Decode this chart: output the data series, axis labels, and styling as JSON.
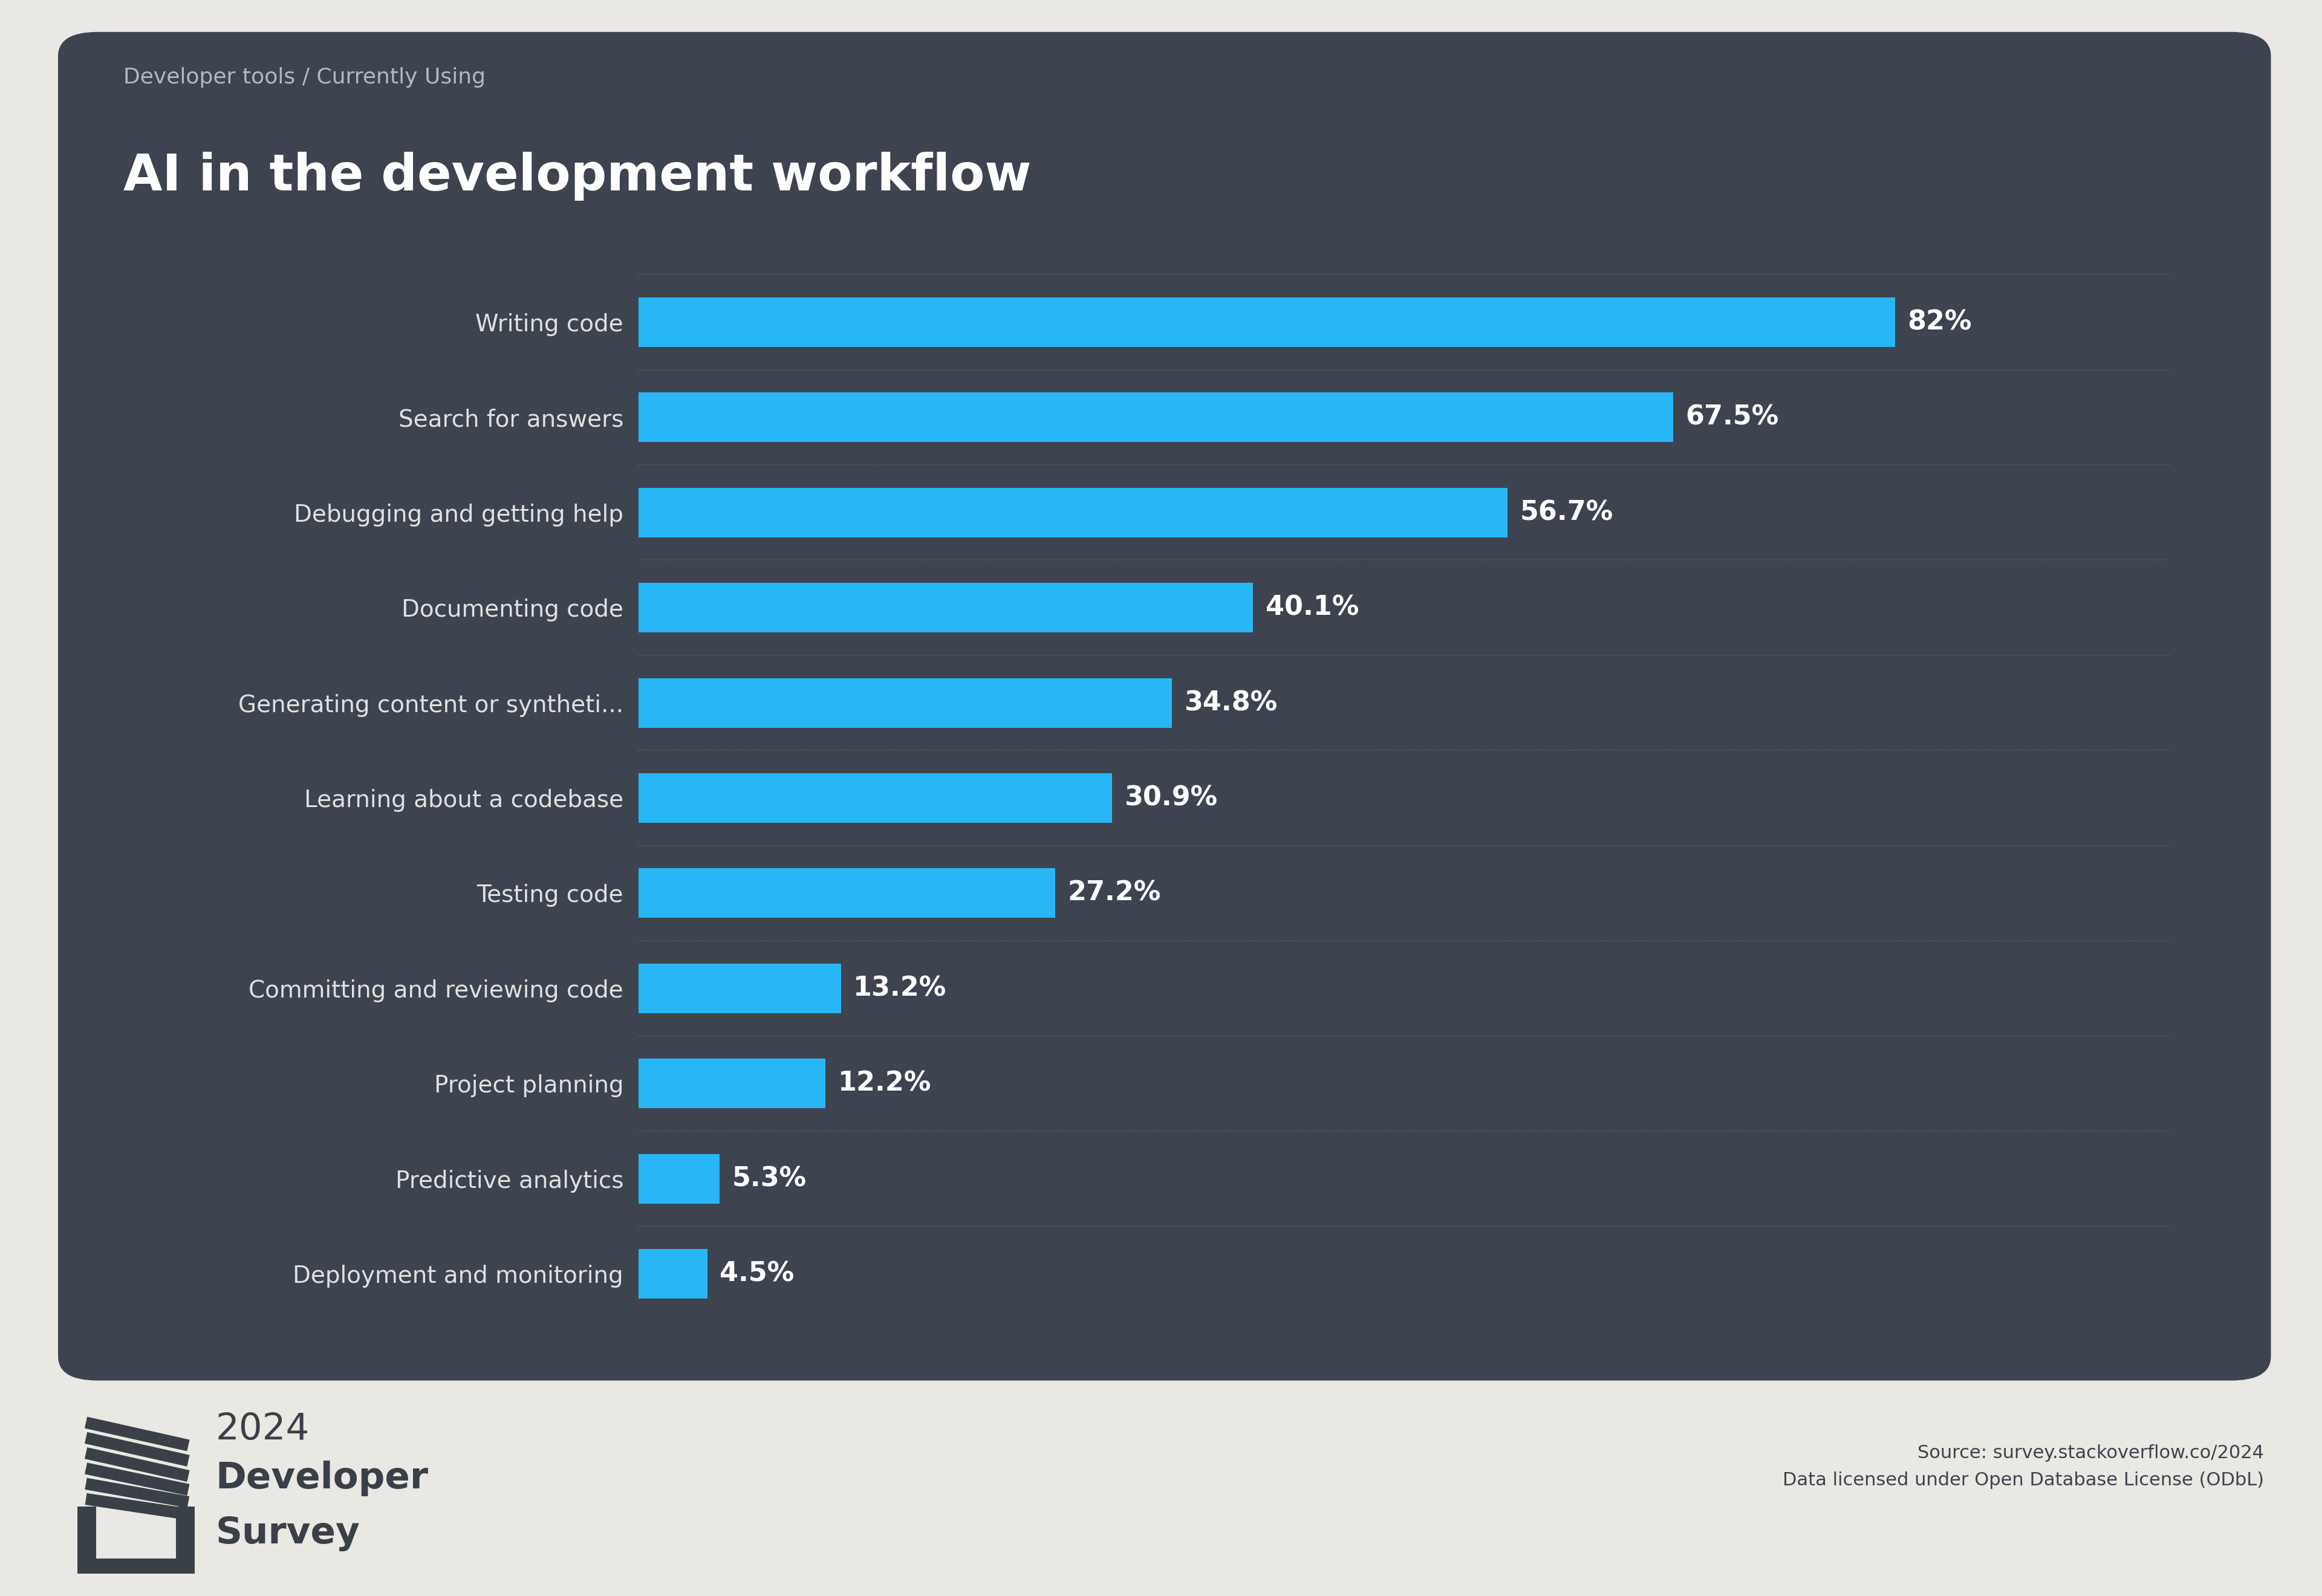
{
  "subtitle": "Developer tools / Currently Using",
  "title": "AI in the development workflow",
  "categories": [
    "Writing code",
    "Search for answers",
    "Debugging and getting help",
    "Documenting code",
    "Generating content or syntheti...",
    "Learning about a codebase",
    "Testing code",
    "Committing and reviewing code",
    "Project planning",
    "Predictive analytics",
    "Deployment and monitoring"
  ],
  "values": [
    82.0,
    67.5,
    56.7,
    40.1,
    34.8,
    30.9,
    27.2,
    13.2,
    12.2,
    5.3,
    4.5
  ],
  "labels": [
    "82%",
    "67.5%",
    "56.7%",
    "40.1%",
    "34.8%",
    "30.9%",
    "27.2%",
    "13.2%",
    "12.2%",
    "5.3%",
    "4.5%"
  ],
  "bar_color": "#29b6f6",
  "background_color": "#3d4450",
  "outer_background": "#eae8e2",
  "text_color": "#e0e0e0",
  "title_color": "#ffffff",
  "subtitle_color": "#b0b8c0",
  "label_color": "#ffffff",
  "source_text": "Source: survey.stackoverflow.co/2024\nData licensed under Open Database License (ODbL)",
  "footer_color": "#3d4450",
  "xlim": [
    0,
    100
  ]
}
